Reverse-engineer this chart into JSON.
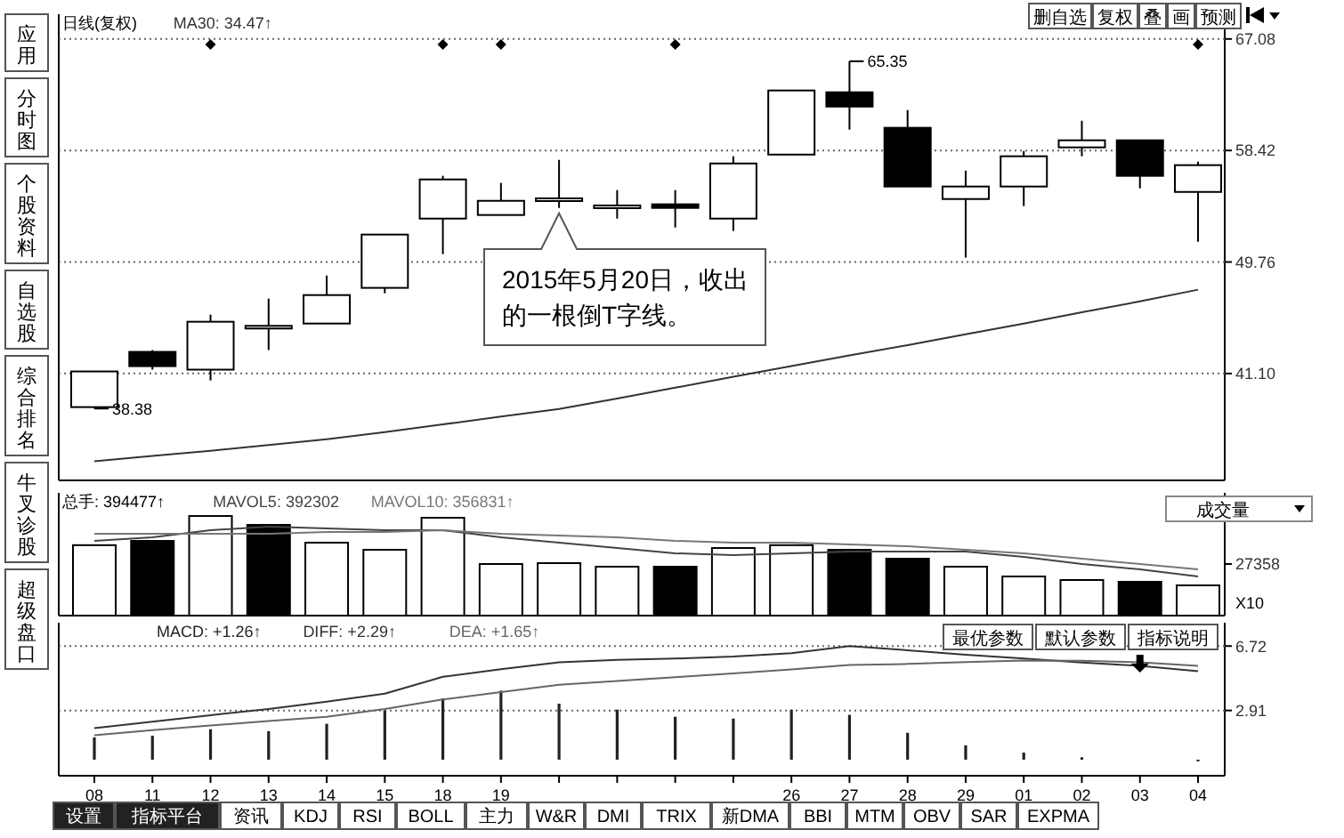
{
  "chart_data": [
    {
      "type": "candlestick",
      "title": "日线(复权)",
      "categories": [
        "08",
        "11",
        "12",
        "13",
        "14",
        "15",
        "18",
        "19",
        null,
        null,
        null,
        null,
        "26",
        "27",
        "28",
        "29",
        "01",
        "02",
        "03",
        "04"
      ],
      "ohlc": [
        [
          38.49,
          41.26,
          38.38,
          41.26
        ],
        [
          42.78,
          42.92,
          41.4,
          41.67
        ],
        [
          41.4,
          45.67,
          40.56,
          45.12
        ],
        [
          44.7,
          46.92,
          42.92,
          44.8
        ],
        [
          44.98,
          48.71,
          44.98,
          47.19
        ],
        [
          47.75,
          51.89,
          47.33,
          51.89
        ],
        [
          53.13,
          56.45,
          50.37,
          56.17
        ],
        [
          53.41,
          55.9,
          53.41,
          54.51
        ],
        [
          54.6,
          57.69,
          53.96,
          54.7
        ],
        [
          54.05,
          55.34,
          53.13,
          54.15
        ],
        [
          54.24,
          55.34,
          52.44,
          53.96
        ],
        [
          53.13,
          57.97,
          52.17,
          57.41
        ],
        [
          58.1,
          63.08,
          58.1,
          63.08
        ],
        [
          62.94,
          65.35,
          60.04,
          61.83
        ],
        [
          60.18,
          61.56,
          55.62,
          55.62
        ],
        [
          54.65,
          56.86,
          50.1,
          55.62
        ],
        [
          55.62,
          58.38,
          54.1,
          57.97
        ],
        [
          58.66,
          60.73,
          57.97,
          59.21
        ],
        [
          59.21,
          59.21,
          55.48,
          56.45
        ],
        [
          55.2,
          57.55,
          51.34,
          57.28
        ]
      ],
      "series": [
        {
          "name": "MA30: 34.47↑",
          "type": "line",
          "color": "#333333",
          "values": [
            34.28,
            34.7,
            35.1,
            35.55,
            36.0,
            36.55,
            37.15,
            37.75,
            38.35,
            39.15,
            40.0,
            40.85,
            41.67,
            42.5,
            43.3,
            44.15,
            44.98,
            45.85,
            46.7,
            47.61
          ]
        }
      ],
      "ylim": [
        32.8,
        69.0
      ],
      "yticks": [
        {
          "value": 41.1,
          "label": "41.10"
        },
        49.76,
        58.42,
        67.08
      ],
      "grid": "y",
      "tick_labels": "y",
      "annotations": [
        "2015年5月20日，收出的一根倒T字线。",
        {
          "text": "65.35",
          "x": "27",
          "y": 65.35
        },
        {
          "text": "38.38",
          "x": "08",
          "y": 38.38
        }
      ]
    },
    {
      "type": "bar",
      "categories": [
        "08",
        "11",
        "12",
        "13",
        "14",
        "15",
        "18",
        "19",
        null,
        null,
        null,
        null,
        "26",
        "27",
        "28",
        "29",
        "01",
        "02",
        "03",
        "04"
      ],
      "series": [
        {
          "name": "总手: 394477↑",
          "type": "bar",
          "colors": [
            "#ffffff",
            "#000000",
            "#ffffff",
            "#000000",
            "#ffffff",
            "#ffffff",
            "#ffffff",
            "#ffffff",
            "#ffffff",
            "#ffffff",
            "#000000",
            "#ffffff",
            "#ffffff",
            "#000000",
            "#000000",
            "#ffffff",
            "#ffffff",
            "#ffffff",
            "#000000",
            "#ffffff"
          ],
          "values": [
            37340,
            39600,
            52800,
            48090,
            38660,
            34890,
            51870,
            27350,
            27820,
            25930,
            25930,
            35830,
            37340,
            34890,
            30180,
            25930,
            20750,
            18860,
            17920,
            16030
          ]
        },
        {
          "name": "MAVOL5: 392302",
          "type": "line",
          "color": "#444444",
          "values": [
            39610,
            41490,
            45260,
            47140,
            46210,
            45260,
            45260,
            41490,
            38660,
            35830,
            33010,
            32060,
            33010,
            33950,
            33950,
            33950,
            31120,
            27350,
            24520,
            20750
          ]
        },
        {
          "name": "MAVOL10: 356831↑",
          "type": "line",
          "color": "#777777",
          "values": [
            43380,
            43380,
            43380,
            43380,
            44320,
            44320,
            45260,
            43380,
            42440,
            41490,
            39610,
            38660,
            38660,
            37720,
            36780,
            34890,
            33010,
            30180,
            27350,
            24520
          ]
        }
      ],
      "ylim": [
        0,
        65080
      ],
      "yticks": [
        27358,
        54014
      ],
      "tick_labels": "y",
      "annotations": [
        "X10",
        "成交量"
      ]
    },
    {
      "type": "line",
      "categories": [
        "08",
        "11",
        "12",
        "13",
        "14",
        "15",
        "18",
        "19",
        null,
        null,
        null,
        null,
        "26",
        "27",
        "28",
        "29",
        "01",
        "02",
        "03",
        "04"
      ],
      "series": [
        {
          "name": "MACD: +1.26↑",
          "type": "bar",
          "color": "#222222",
          "values": [
            1.32,
            1.42,
            1.8,
            1.69,
            2.12,
            2.91,
            3.62,
            4.08,
            3.31,
            2.96,
            2.54,
            2.43,
            2.96,
            2.65,
            1.59,
            0.85,
            0.42,
            0.14,
            null,
            -0.1
          ]
        },
        {
          "name": "DIFF: +2.29↑",
          "type": "line",
          "color": "#333333",
          "values": [
            1.86,
            2.25,
            2.63,
            3.0,
            3.43,
            3.9,
            4.9,
            5.35,
            5.76,
            5.9,
            5.98,
            6.1,
            6.3,
            6.72,
            6.47,
            6.2,
            5.98,
            5.75,
            5.55,
            5.23
          ]
        },
        {
          "name": "DEA: +1.65↑",
          "type": "line",
          "color": "#666666",
          "values": [
            1.45,
            1.75,
            2.02,
            2.28,
            2.53,
            3.0,
            3.56,
            4.0,
            4.43,
            4.66,
            4.88,
            5.1,
            5.34,
            5.6,
            5.66,
            5.77,
            5.87,
            5.85,
            5.76,
            5.55
          ]
        }
      ],
      "ylim": [
        -0.95,
        8.1
      ],
      "yticks": [
        6.72,
        2.91
      ],
      "grid": "y",
      "annotations": [
        "最优参数",
        "默认参数",
        "指标说明"
      ]
    },
    {
      "type": "other",
      "annotations": [
        "应用",
        "分时图",
        "个股资料",
        "自选股",
        "综合排名",
        "牛叉诊股",
        "超级盘口"
      ]
    },
    {
      "type": "other",
      "annotations": [
        "删自选",
        "复权",
        "叠",
        "画",
        "预测"
      ]
    },
    {
      "type": "other",
      "annotations": [
        "设置",
        "指标平台",
        "资讯",
        "KDJ",
        "RSI",
        "BOLL",
        "主力",
        "W&R",
        "DMI",
        "TRIX",
        "新DMA",
        "BBI",
        "MTM",
        "OBV",
        "SAR",
        "EXPMA"
      ]
    }
  ]
}
